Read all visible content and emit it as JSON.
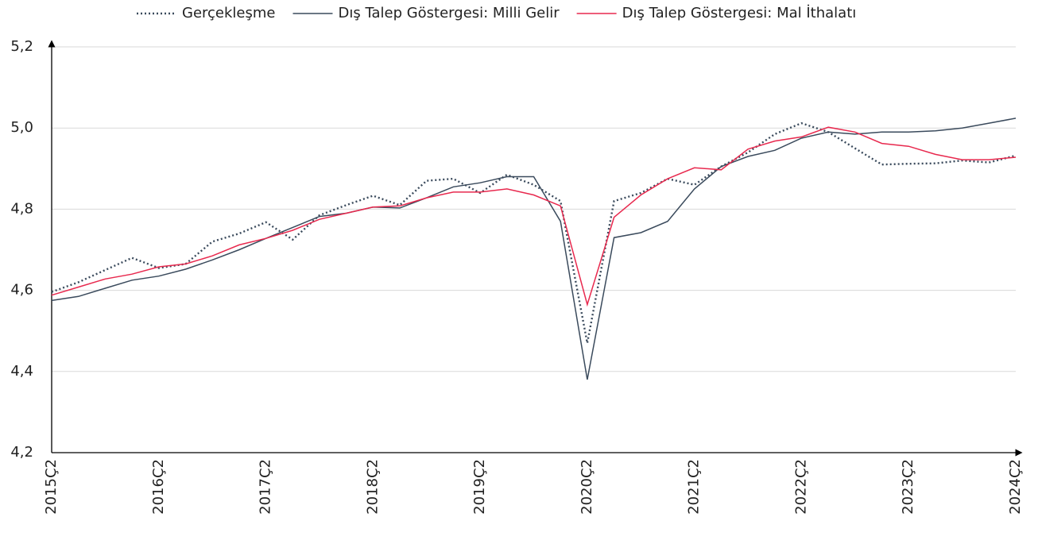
{
  "chart_data": {
    "type": "line",
    "categories": [
      "2015Ç2",
      null,
      null,
      null,
      "2016Ç2",
      null,
      null,
      null,
      "2017Ç2",
      null,
      null,
      null,
      "2018Ç2",
      null,
      null,
      null,
      "2019Ç2",
      null,
      null,
      null,
      "2020Ç2",
      null,
      null,
      null,
      "2021Ç2",
      null,
      null,
      null,
      "2022Ç2",
      null,
      null,
      null,
      "2023Ç2",
      null,
      null,
      null,
      "2024Ç2"
    ],
    "series": [
      {
        "name": "Gerçekleşme",
        "color": "#3a4a5c",
        "style": "dotted",
        "values": [
          4.596,
          4.62,
          4.65,
          4.68,
          4.655,
          4.665,
          4.72,
          4.74,
          4.768,
          4.725,
          4.785,
          4.81,
          4.833,
          4.81,
          4.87,
          4.875,
          4.84,
          4.885,
          4.86,
          4.82,
          4.47,
          4.82,
          4.84,
          4.875,
          4.86,
          4.905,
          4.94,
          4.985,
          5.012,
          4.99,
          4.95,
          4.91,
          4.912,
          4.913,
          4.92,
          4.915,
          4.932
        ]
      },
      {
        "name": "Dış Talep Göstergesi: Milli Gelir",
        "color": "#3a4a5c",
        "style": "solid",
        "values": [
          4.575,
          4.585,
          4.605,
          4.625,
          4.635,
          4.652,
          4.675,
          4.7,
          4.728,
          4.755,
          4.782,
          4.79,
          4.805,
          4.803,
          4.828,
          4.855,
          4.865,
          4.88,
          4.88,
          4.77,
          4.38,
          4.73,
          4.742,
          4.77,
          4.85,
          4.905,
          4.93,
          4.945,
          4.975,
          4.99,
          4.985,
          4.99,
          4.99,
          4.993,
          5.0,
          5.012,
          5.024
        ]
      },
      {
        "name": "Dış Talep Göstergesi: Mal İthalatı",
        "color": "#e8294e",
        "style": "solid",
        "values": [
          4.588,
          4.608,
          4.628,
          4.64,
          4.658,
          4.665,
          4.685,
          4.712,
          4.728,
          4.748,
          4.775,
          4.79,
          4.805,
          4.808,
          4.828,
          4.842,
          4.842,
          4.85,
          4.835,
          4.808,
          4.565,
          4.78,
          4.835,
          4.875,
          4.902,
          4.897,
          4.948,
          4.968,
          4.978,
          5.002,
          4.99,
          4.962,
          4.955,
          4.935,
          4.922,
          4.922,
          4.928
        ]
      }
    ],
    "ylim": [
      4.2,
      5.2
    ],
    "yticks": [
      {
        "value": 4.2,
        "label": "4,2"
      },
      {
        "value": 4.4,
        "label": "4,4"
      },
      {
        "value": 4.6,
        "label": "4,6"
      },
      {
        "value": 4.8,
        "label": "4,8"
      },
      {
        "value": 5.0,
        "label": "5,0"
      },
      {
        "value": 5.2,
        "label": "5,2"
      }
    ],
    "grid": true,
    "legend": "top"
  }
}
